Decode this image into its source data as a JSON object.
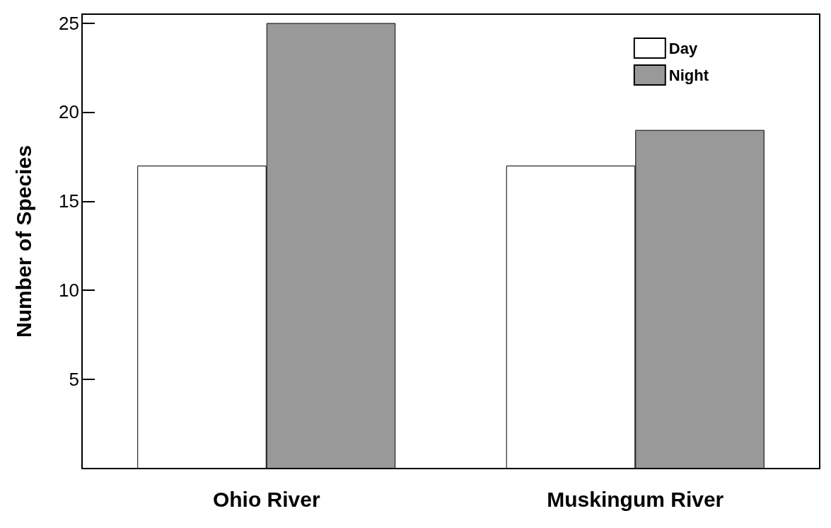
{
  "chart_data": {
    "type": "bar",
    "ylabel": "Number of Species",
    "categories": [
      "Ohio River",
      "Muskingum River"
    ],
    "series": [
      {
        "name": "Day",
        "color": "#ffffff",
        "values": [
          17,
          17
        ]
      },
      {
        "name": "Night",
        "color": "#999999",
        "values": [
          25,
          19
        ]
      }
    ],
    "ylim": [
      0,
      25.5
    ],
    "yticks": [
      5,
      10,
      15,
      20,
      25
    ],
    "grid": false,
    "legend": "top right"
  }
}
